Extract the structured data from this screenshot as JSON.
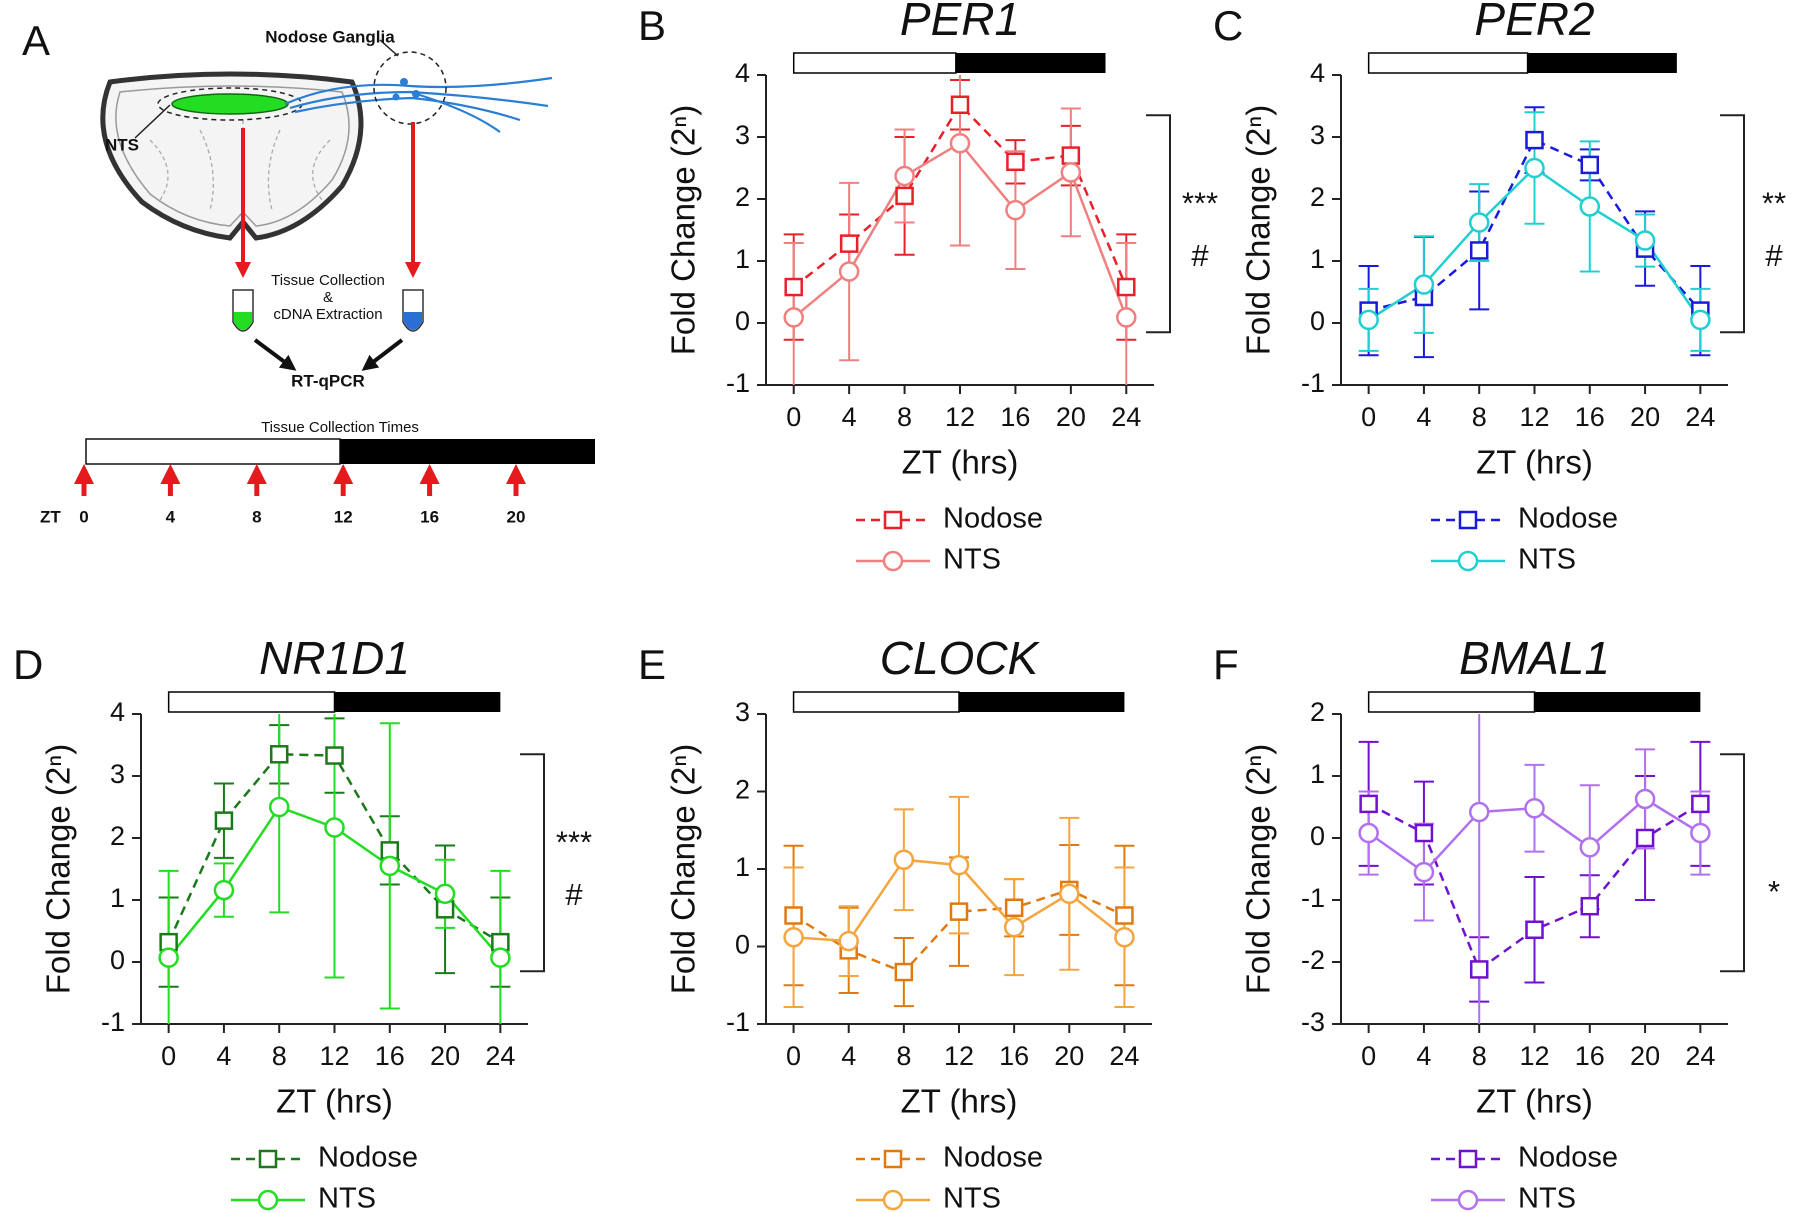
{
  "diagram": {
    "panel": "A",
    "ganglia_label": "Nodose Ganglia",
    "nts_label": "NTS",
    "collection_text": [
      "Tissue Collection",
      "&",
      "cDNA Extraction"
    ],
    "assay": "RT-qPCR",
    "timeline_title": "Tissue Collection Times",
    "time_prefix": "ZT",
    "collection_times": [
      0,
      4,
      8,
      12,
      16,
      20
    ]
  },
  "chart_data": [
    {
      "type": "line",
      "panel": "B",
      "title": "PER1",
      "xlabel": "ZT (hrs)",
      "ylabel": "Fold Change (2ⁿ)",
      "x": [
        0,
        4,
        8,
        12,
        16,
        20,
        24
      ],
      "xlim": [
        -2,
        26
      ],
      "xticks": [
        0,
        4,
        8,
        12,
        16,
        20,
        24
      ],
      "ylim": [
        -1,
        4
      ],
      "yticks": [
        -1,
        0,
        1,
        2,
        3,
        4
      ],
      "light_period": [
        0,
        11.7
      ],
      "dark_period": [
        11.7,
        22.5
      ],
      "series": [
        {
          "name": "Nodose",
          "color": "#e8202a",
          "line_style": "dashed",
          "marker": "square",
          "values": [
            0.58,
            1.28,
            2.05,
            3.52,
            2.6,
            2.7,
            0.58
          ],
          "errors": [
            0.85,
            0.47,
            0.95,
            0.4,
            0.35,
            0.48,
            0.85
          ]
        },
        {
          "name": "NTS",
          "color": "#f08080",
          "line_style": "solid",
          "marker": "circle",
          "values": [
            0.09,
            0.83,
            2.37,
            2.9,
            1.82,
            2.43,
            0.09
          ],
          "errors": [
            1.2,
            1.43,
            0.75,
            1.65,
            0.95,
            1.03,
            1.2
          ]
        }
      ],
      "annotations": [
        "***",
        "#"
      ]
    },
    {
      "type": "line",
      "panel": "C",
      "title": "PER2",
      "xlabel": "ZT (hrs)",
      "ylabel": "Fold Change (2ⁿ)",
      "x": [
        0,
        4,
        8,
        12,
        16,
        20,
        24
      ],
      "xlim": [
        -2,
        26
      ],
      "xticks": [
        0,
        4,
        8,
        12,
        16,
        20,
        24
      ],
      "ylim": [
        -1,
        4
      ],
      "yticks": [
        -1,
        0,
        1,
        2,
        3,
        4
      ],
      "light_period": [
        0,
        11.5
      ],
      "dark_period": [
        11.5,
        22.3
      ],
      "series": [
        {
          "name": "Nodose",
          "color": "#1a1adc",
          "line_style": "dashed",
          "marker": "square",
          "values": [
            0.2,
            0.42,
            1.17,
            2.95,
            2.55,
            1.2,
            0.2
          ],
          "errors": [
            0.72,
            0.97,
            0.95,
            0.53,
            0.25,
            0.6,
            0.72
          ]
        },
        {
          "name": "NTS",
          "color": "#20d0d0",
          "line_style": "solid",
          "marker": "circle",
          "values": [
            0.05,
            0.62,
            1.62,
            2.5,
            1.88,
            1.33,
            0.05
          ],
          "errors": [
            0.5,
            0.78,
            0.62,
            0.9,
            1.05,
            0.42,
            0.5
          ]
        }
      ],
      "annotations": [
        "**",
        "#"
      ]
    },
    {
      "type": "line",
      "panel": "D",
      "title": "NR1D1",
      "xlabel": "ZT (hrs)",
      "ylabel": "Fold Change (2ⁿ)",
      "x": [
        0,
        4,
        8,
        12,
        16,
        20,
        24
      ],
      "xlim": [
        -2,
        26
      ],
      "xticks": [
        0,
        4,
        8,
        12,
        16,
        20,
        24
      ],
      "ylim": [
        -1,
        4
      ],
      "yticks": [
        -1,
        0,
        1,
        2,
        3,
        4
      ],
      "light_period": [
        0,
        12
      ],
      "dark_period": [
        12,
        24
      ],
      "series": [
        {
          "name": "Nodose",
          "color": "#1a7a1a",
          "line_style": "dashed",
          "marker": "square",
          "values": [
            0.32,
            2.28,
            3.35,
            3.33,
            1.8,
            0.85,
            0.32
          ],
          "errors": [
            0.72,
            0.6,
            0.47,
            0.6,
            0.55,
            1.03,
            0.72
          ]
        },
        {
          "name": "NTS",
          "color": "#22dd22",
          "line_style": "solid",
          "marker": "circle",
          "values": [
            0.07,
            1.16,
            2.5,
            2.17,
            1.55,
            1.1,
            0.07
          ],
          "errors": [
            1.4,
            0.43,
            1.7,
            2.42,
            2.3,
            0.55,
            1.4
          ]
        }
      ],
      "annotations": [
        "***",
        "#"
      ]
    },
    {
      "type": "line",
      "panel": "E",
      "title": "CLOCK",
      "xlabel": "ZT (hrs)",
      "ylabel": "Fold Change (2ⁿ)",
      "x": [
        0,
        4,
        8,
        12,
        16,
        20,
        24
      ],
      "xlim": [
        -2,
        26
      ],
      "xticks": [
        0,
        4,
        8,
        12,
        16,
        20,
        24
      ],
      "ylim": [
        -1,
        3
      ],
      "yticks": [
        -1,
        0,
        1,
        2,
        3
      ],
      "light_period": [
        0,
        12
      ],
      "dark_period": [
        12,
        24
      ],
      "series": [
        {
          "name": "Nodose",
          "color": "#e07a10",
          "line_style": "dashed",
          "marker": "square",
          "values": [
            0.4,
            -0.05,
            -0.33,
            0.45,
            0.5,
            0.73,
            0.4
          ],
          "errors": [
            0.9,
            0.55,
            0.44,
            0.7,
            0.37,
            0.58,
            0.9
          ]
        },
        {
          "name": "NTS",
          "color": "#f5a540",
          "line_style": "solid",
          "marker": "circle",
          "values": [
            0.12,
            0.07,
            1.12,
            1.05,
            0.25,
            0.68,
            0.12
          ],
          "errors": [
            0.9,
            0.45,
            0.65,
            0.88,
            0.62,
            0.98,
            0.9
          ]
        }
      ],
      "annotations": []
    },
    {
      "type": "line",
      "panel": "F",
      "title": "BMAL1",
      "xlabel": "ZT (hrs)",
      "ylabel": "Fold Change (2ⁿ)",
      "x": [
        0,
        4,
        8,
        12,
        16,
        20,
        24
      ],
      "xlim": [
        -2,
        26
      ],
      "xticks": [
        0,
        4,
        8,
        12,
        16,
        20,
        24
      ],
      "ylim": [
        -3,
        2
      ],
      "yticks": [
        -3,
        -2,
        -1,
        0,
        1,
        2
      ],
      "light_period": [
        0,
        12
      ],
      "dark_period": [
        12,
        24
      ],
      "series": [
        {
          "name": "Nodose",
          "color": "#7010d0",
          "line_style": "dashed",
          "marker": "square",
          "values": [
            0.55,
            0.08,
            -2.12,
            -1.48,
            -1.1,
            0.0,
            0.55
          ],
          "errors": [
            1.0,
            0.83,
            0.52,
            0.85,
            0.5,
            1.0,
            1.0
          ]
        },
        {
          "name": "NTS",
          "color": "#b070f0",
          "line_style": "solid",
          "marker": "circle",
          "values": [
            0.08,
            -0.55,
            0.42,
            0.48,
            -0.15,
            0.63,
            0.08
          ],
          "errors": [
            0.67,
            0.78,
            3.5,
            0.7,
            1.0,
            0.8,
            0.67
          ]
        }
      ],
      "annotations": [
        "*"
      ]
    }
  ]
}
